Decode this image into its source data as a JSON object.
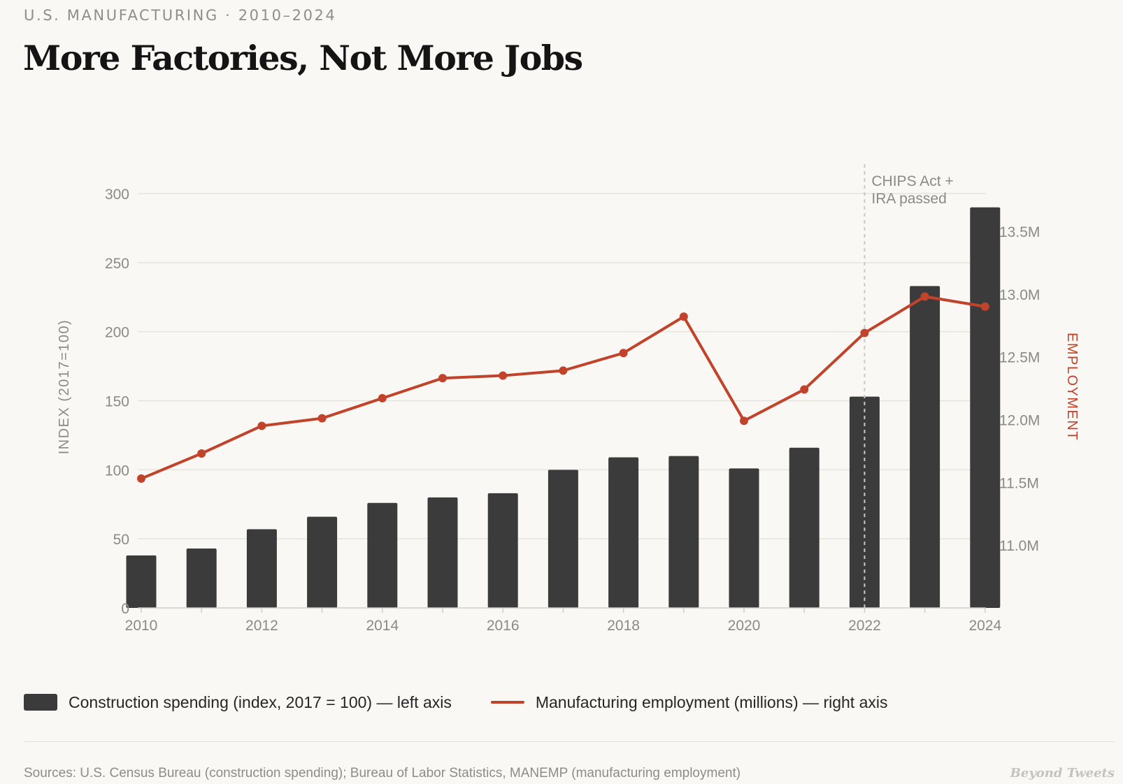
{
  "header": {
    "kicker": "U.S. MANUFACTURING · 2010–2024",
    "title": "More Factories, Not More Jobs"
  },
  "legend": {
    "bars_label": "Construction spending (index, 2017 = 100) — left axis",
    "line_label": "Manufacturing employment (millions) — right axis"
  },
  "footer": {
    "sources": "Sources: U.S. Census Bureau (construction spending); Bureau of Labor Statistics, MANEMP (manufacturing employment)",
    "brand": "Beyond Tweets"
  },
  "colors": {
    "bar": "#3b3b3b",
    "line": "#c2432b",
    "grid": "#e5e3dd",
    "axis_text": "#8a8a86",
    "annotation_line": "#c9c9c5",
    "background": "#f9f8f4"
  },
  "chart_data": {
    "type": "bar+line",
    "x": [
      2010,
      2011,
      2012,
      2013,
      2014,
      2015,
      2016,
      2017,
      2018,
      2019,
      2020,
      2021,
      2022,
      2023,
      2024
    ],
    "x_tick_labels": [
      "2010",
      "2012",
      "2014",
      "2016",
      "2018",
      "2020",
      "2022",
      "2024"
    ],
    "series": [
      {
        "name": "Construction spending (index, 2017 = 100)",
        "kind": "bar",
        "axis": "left",
        "values": [
          38,
          43,
          57,
          66,
          76,
          80,
          83,
          100,
          109,
          110,
          101,
          116,
          153,
          233,
          290
        ]
      },
      {
        "name": "Manufacturing employment (millions)",
        "kind": "line",
        "axis": "right",
        "values": [
          11.53,
          11.73,
          11.95,
          12.01,
          12.17,
          12.33,
          12.35,
          12.39,
          12.53,
          12.82,
          11.99,
          12.24,
          12.69,
          12.98,
          12.9
        ]
      }
    ],
    "left_axis": {
      "label": "INDEX (2017=100)",
      "ylim": [
        0,
        300
      ],
      "ticks": [
        0,
        50,
        100,
        150,
        200,
        250,
        300
      ],
      "tick_labels": [
        "0",
        "50",
        "100",
        "150",
        "200",
        "250",
        "300"
      ]
    },
    "right_axis": {
      "label": "EMPLOYMENT",
      "ylim": [
        10.5,
        13.8
      ],
      "ticks": [
        11.0,
        11.5,
        12.0,
        12.5,
        13.0,
        13.5
      ],
      "tick_labels": [
        "11.0M",
        "11.5M",
        "12.0M",
        "12.5M",
        "13.0M",
        "13.5M"
      ]
    },
    "annotation": {
      "x": 2022,
      "lines": [
        "CHIPS Act +",
        "IRA passed"
      ]
    },
    "grid": true
  }
}
